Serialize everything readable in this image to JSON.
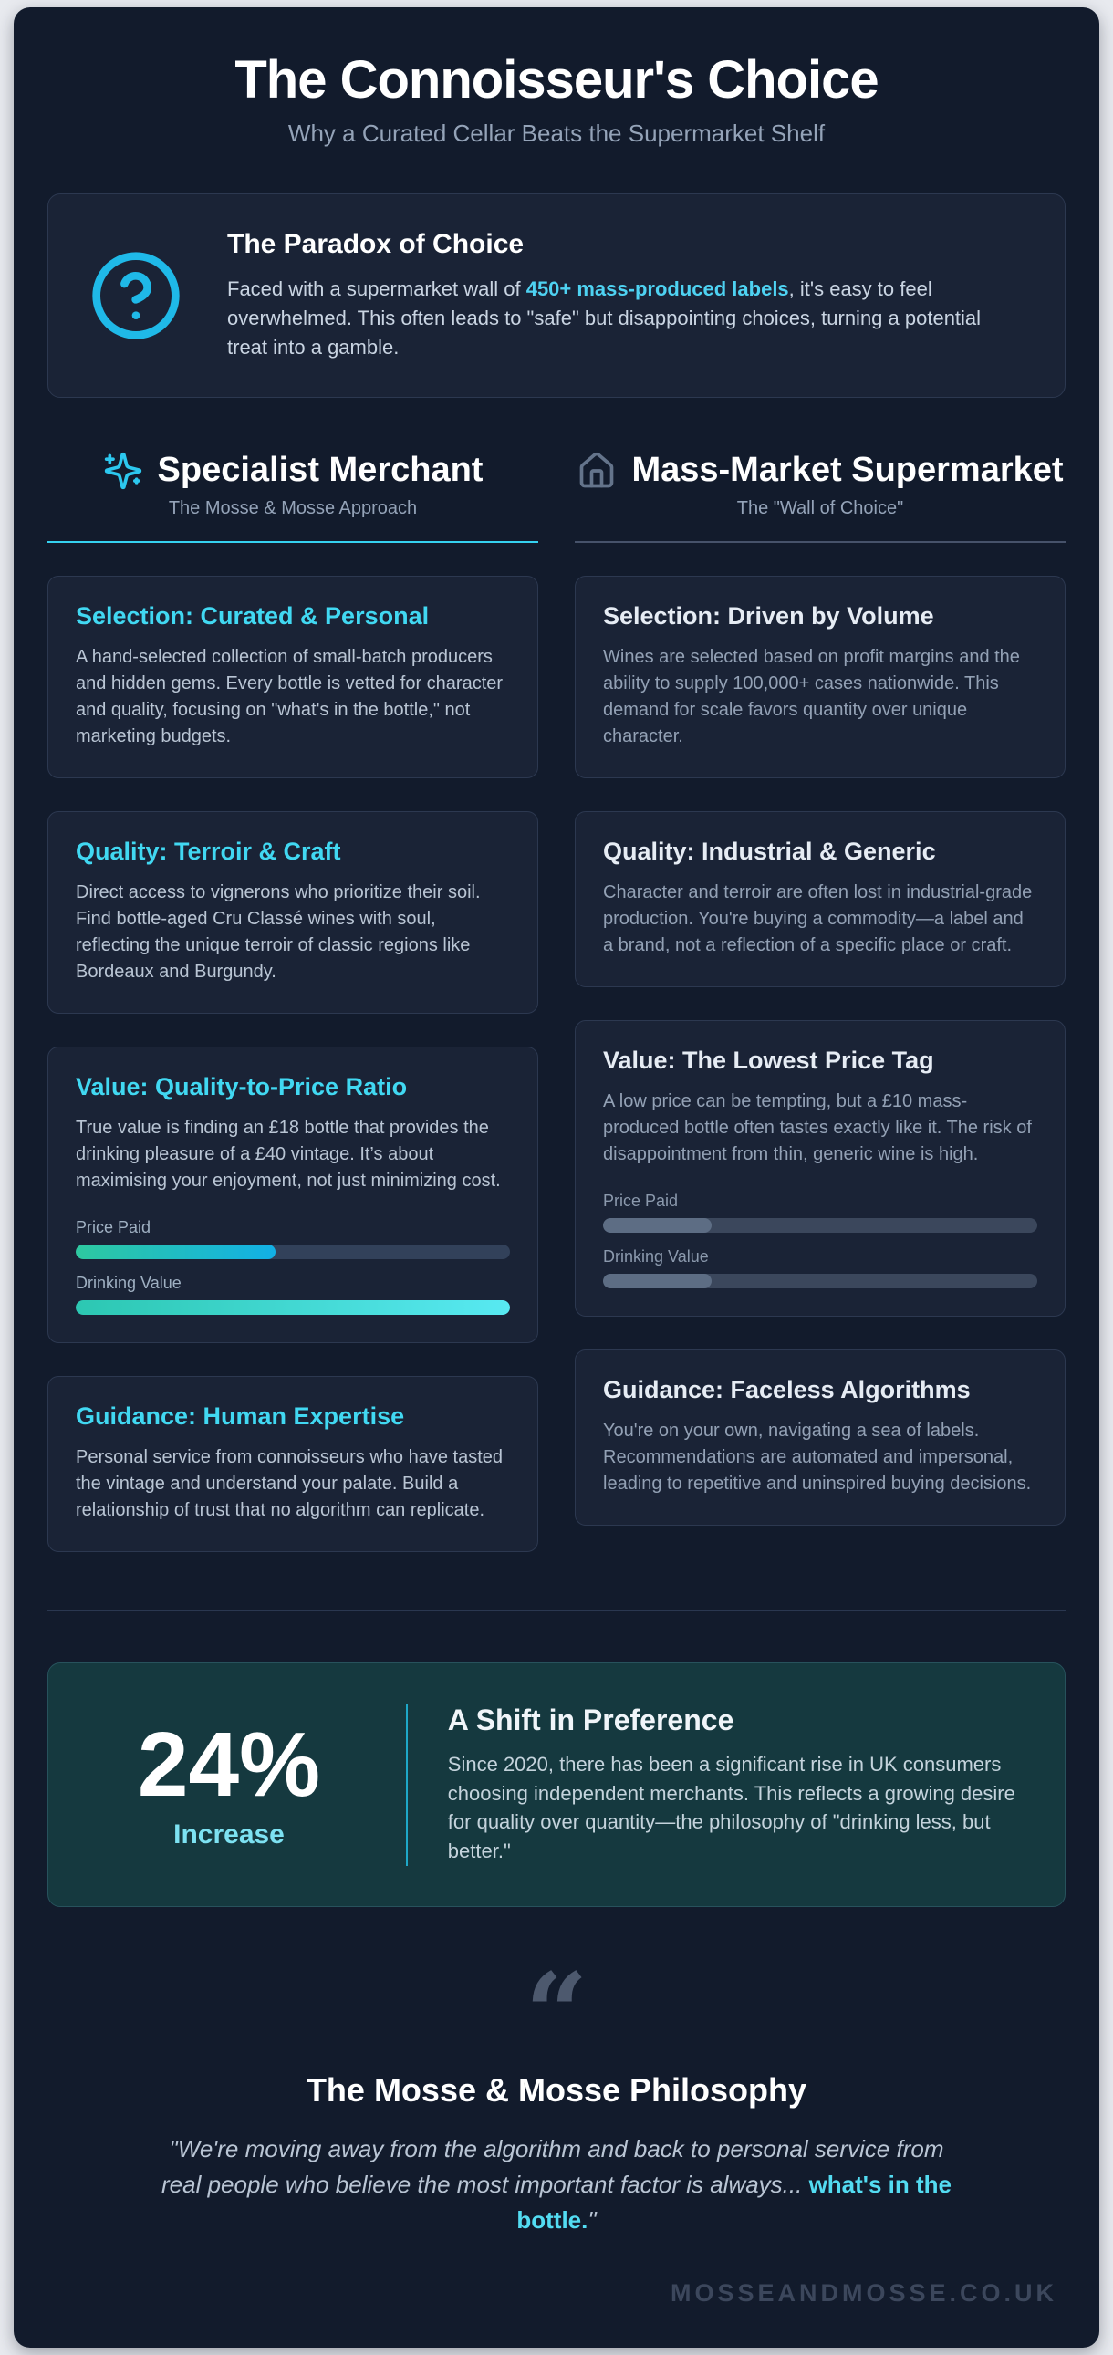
{
  "colors": {
    "poster-bg": "#121b2c",
    "card-bg": "#1a2336",
    "card-border": "#2c3850",
    "accent": "#35d2f0",
    "muted": "#94a3b8"
  },
  "header": {
    "title": "The Connoisseur's Choice",
    "subtitle": "Why a Curated Cellar Beats the Supermarket Shelf"
  },
  "paradox": {
    "icon": "question-mark-circle",
    "title": "The Paradox of Choice",
    "text_before": "Faced with a supermarket wall of ",
    "highlight": "450+ mass-produced labels",
    "text_after": ", it's easy to feel overwhelmed. This often leads to \"safe\" but disappointing choices, turning a potential treat into a gamble."
  },
  "columns": {
    "left": {
      "icon": "sparkles",
      "title": "Specialist Merchant",
      "subtitle": "The Mosse & Mosse Approach",
      "cards": [
        {
          "title": "Selection: Curated & Personal",
          "text": "A hand-selected collection of small-batch producers and hidden gems. Every bottle is vetted for character and quality, focusing on \"what's in the bottle,\" not marketing budgets."
        },
        {
          "title": "Quality: Terroir & Craft",
          "text": "Direct access to vignerons who prioritize their soil. Find bottle-aged Cru Classé wines with soul, reflecting the unique terroir of classic regions like Bordeaux and Burgundy."
        },
        {
          "title": "Value: Quality-to-Price Ratio",
          "text": "True value is finding an £18 bottle that provides the drinking pleasure of a £40 vintage. It’s about maximising your enjoyment, not just minimizing cost.",
          "bars": [
            {
              "label": "Price Paid",
              "value": 46
            },
            {
              "label": "Drinking Value",
              "value": 100
            }
          ]
        },
        {
          "title": "Guidance: Human Expertise",
          "text": "Personal service from connoisseurs who have tasted the vintage and understand your palate. Build a relationship of trust that no algorithm can replicate."
        }
      ]
    },
    "right": {
      "icon": "house",
      "title": "Mass-Market Supermarket",
      "subtitle": "The \"Wall of Choice\"",
      "cards": [
        {
          "title": "Selection: Driven by Volume",
          "text": "Wines are selected based on profit margins and the ability to supply 100,000+ cases nationwide. This demand for scale favors quantity over unique character."
        },
        {
          "title": "Quality: Industrial & Generic",
          "text": "Character and terroir are often lost in industrial-grade production. You're buying a commodity—a label and a brand, not a reflection of a specific place or craft."
        },
        {
          "title": "Value: The Lowest Price Tag",
          "text": "A low price can be tempting, but a £10 mass-produced bottle often tastes exactly like it. The risk of disappointment from thin, generic wine is high.",
          "bars": [
            {
              "label": "Price Paid",
              "value": 25
            },
            {
              "label": "Drinking Value",
              "value": 25
            }
          ]
        },
        {
          "title": "Guidance: Faceless Algorithms",
          "text": "You're on your own, navigating a sea of labels. Recommendations are automated and impersonal, leading to repetitive and uninspired buying decisions."
        }
      ]
    }
  },
  "stat": {
    "value": "24%",
    "label": "Increase",
    "title": "A Shift in Preference",
    "text": "Since 2020, there has been a significant rise in UK consumers choosing independent merchants. This reflects a growing desire for quality over quantity—the philosophy of \"drinking less, but better.\""
  },
  "philosophy": {
    "quote_mark": "“",
    "title": "The Mosse & Mosse Philosophy",
    "quote_body": "\"We're moving away from the algorithm and back to personal service from real people who believe the most important factor is always... ",
    "highlight": "what's in the bottle.",
    "closing": "\""
  },
  "footer": {
    "watermark": "MOSSEANDMOSSE.CO.UK"
  }
}
